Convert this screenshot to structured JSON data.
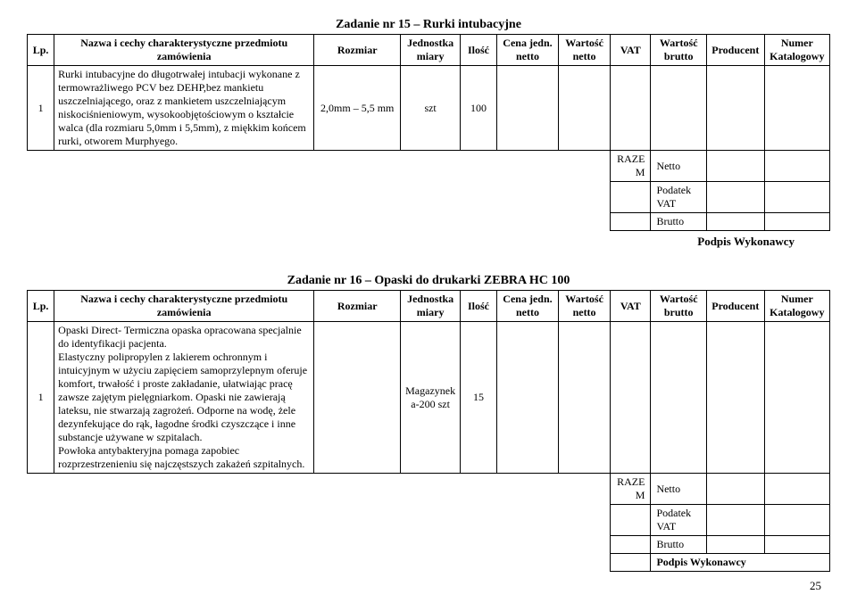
{
  "tables": [
    {
      "title": "Zadanie nr 15 – Rurki intubacyjne",
      "headers": {
        "lp": "Lp.",
        "nazwa": "Nazwa i cechy charakterystyczne przedmiotu zamówienia",
        "rozmiar": "Rozmiar",
        "jednostka": "Jednostka miary",
        "ilosc": "Ilość",
        "cena": "Cena jedn. netto",
        "wartosc": "Wartość netto",
        "vat": "VAT",
        "wartbrutto": "Wartość brutto",
        "producent": "Producent",
        "katalog": "Numer Katalogowy"
      },
      "rows": [
        {
          "lp": "1",
          "nazwa": "Rurki intubacyjne do długotrwałej intubacji wykonane z termowrażliwego PCV bez DEHP,bez mankietu uszczelniającego, oraz z mankietem uszczelniającym niskociśnieniowym, wysokoobjętościowym o kształcie walca (dla rozmiaru 5,0mm i 5,5mm), z miękkim końcem rurki, otworem Murphyego.",
          "rozmiar": "2,0mm – 5,5 mm",
          "jednostka": "szt",
          "ilosc": "100"
        }
      ],
      "summary": [
        {
          "label": "RAZEM",
          "value": "Netto"
        },
        {
          "label": "",
          "value": "Podatek VAT"
        },
        {
          "label": "",
          "value": "Brutto"
        }
      ],
      "podpis": "Podpis Wykonawcy"
    },
    {
      "title": "Zadanie nr 16 – Opaski do drukarki ZEBRA HC 100",
      "headers": {
        "lp": "Lp.",
        "nazwa": "Nazwa i cechy charakterystyczne przedmiotu zamówienia",
        "rozmiar": "Rozmiar",
        "jednostka": "Jednostka miary",
        "ilosc": "Ilość",
        "cena": "Cena jedn. netto",
        "wartosc": "Wartość netto",
        "vat": "VAT",
        "wartbrutto": "Wartość brutto",
        "producent": "Producent",
        "katalog": "Numer Katalogowy"
      },
      "rows": [
        {
          "lp": "1",
          "nazwa": "Opaski Direct- Termiczna opaska opracowana specjalnie do identyfikacji pacjenta.\nElastyczny polipropylen z lakierem ochronnym i intuicyjnym w użyciu zapięciem samoprzylepnym oferuje komfort, trwałość i proste zakładanie, ułatwiając pracę zawsze zajętym pielęgniarkom. Opaski nie zawierają lateksu, nie stwarzają zagrożeń. Odporne na wodę, żele dezynfekujące do rąk, łagodne środki czyszczące i inne substancje używane w szpitalach.\nPowłoka antybakteryjna pomaga zapobiec rozprzestrzenieniu się najczęstszych zakażeń szpitalnych.",
          "rozmiar": "",
          "jednostka": "Magazynek a-200 szt",
          "ilosc": "15"
        }
      ],
      "summary": [
        {
          "label": "RAZEM",
          "value": "Netto"
        },
        {
          "label": "",
          "value": "Podatek VAT"
        },
        {
          "label": "",
          "value": "Brutto"
        },
        {
          "label": "",
          "value": "Podpis Wykonawcy"
        }
      ],
      "podpis": ""
    }
  ],
  "page_number": "25"
}
